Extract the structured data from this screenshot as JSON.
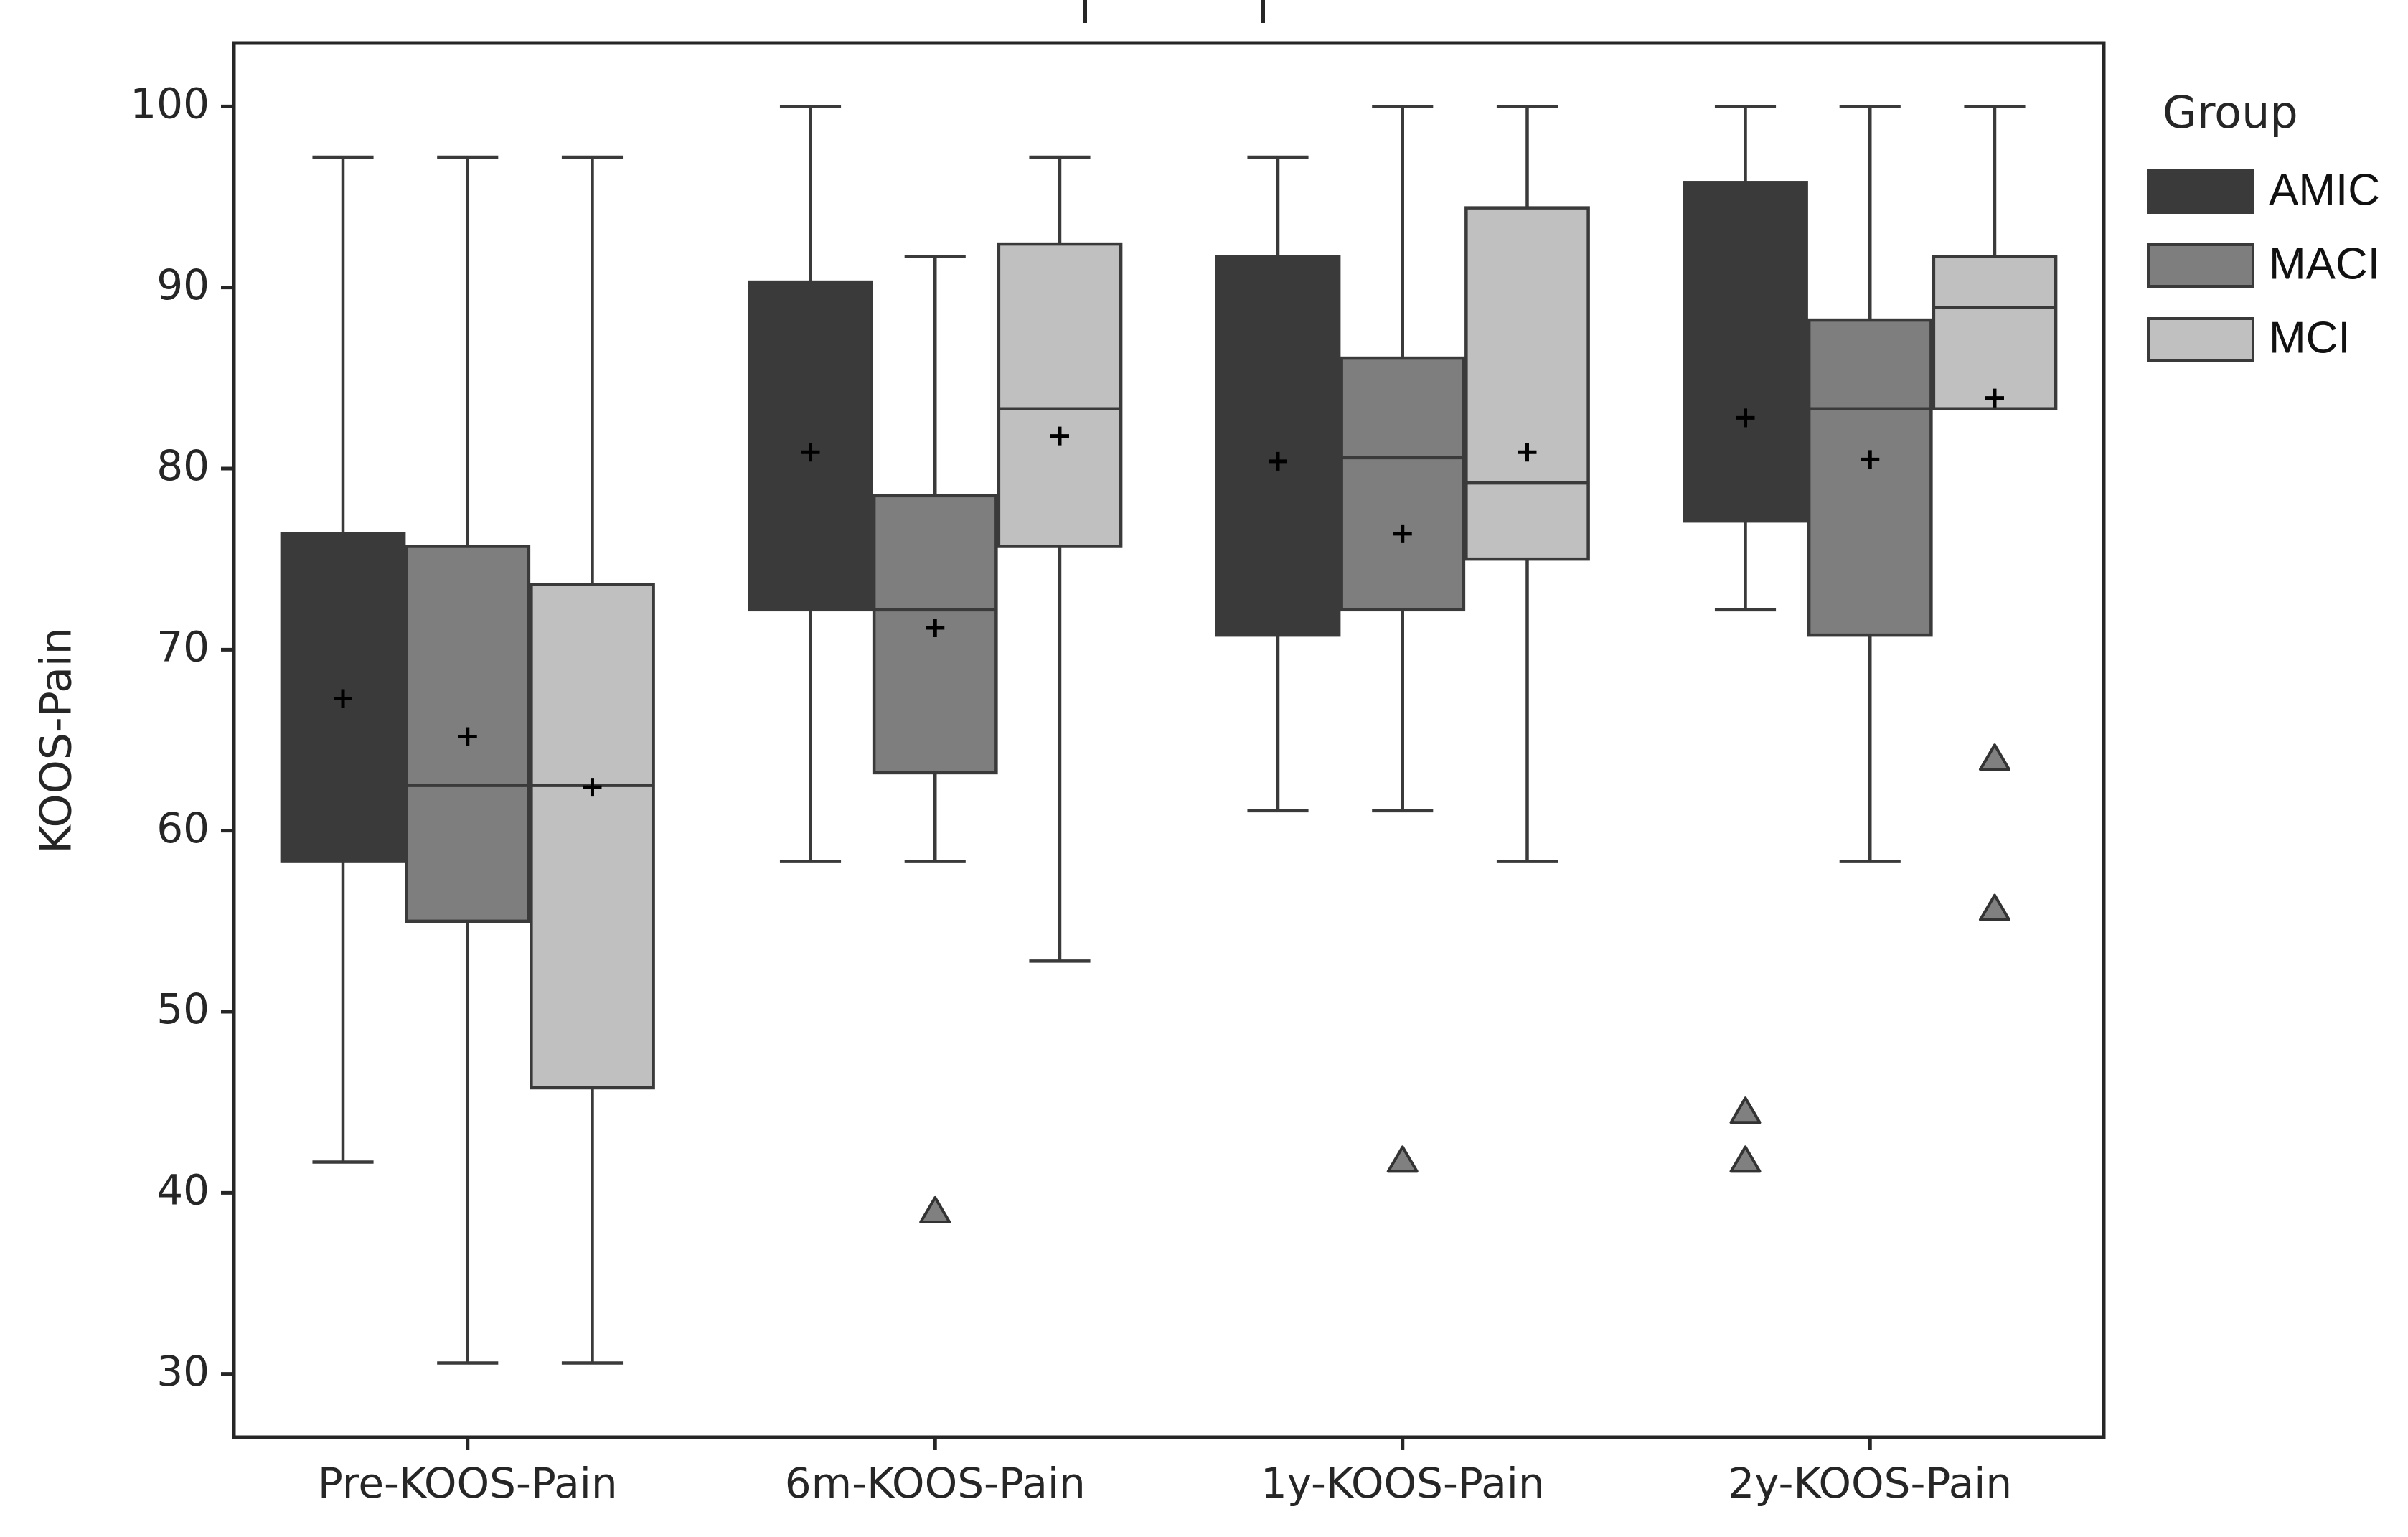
{
  "chart_data": {
    "type": "box",
    "title": "",
    "xlabel": "",
    "ylabel": "KOOS-Pain",
    "ylim": [
      26.5,
      103.5
    ],
    "yticks": [
      30,
      40,
      50,
      60,
      70,
      80,
      90,
      100
    ],
    "grid": false,
    "categories": [
      "Pre-KOOS-Pain",
      "6m-KOOS-Pain",
      "1y-KOOS-Pain",
      "2y-KOOS-Pain"
    ],
    "legend": {
      "title": "Group",
      "placement": "right",
      "entries": [
        "AMIC",
        "MACI",
        "MCI"
      ]
    },
    "series": [
      {
        "name": "AMIC",
        "color": "#3a3a3a",
        "boxes": [
          {
            "category": "Pre-KOOS-Pain",
            "whisker_low": 41.7,
            "q1": 58.3,
            "median": 66.7,
            "q3": 76.4,
            "whisker_high": 97.2,
            "mean": 67.3,
            "outliers": []
          },
          {
            "category": "6m-KOOS-Pain",
            "whisker_low": 58.3,
            "q1": 72.2,
            "median": 80.6,
            "q3": 90.3,
            "whisker_high": 100,
            "mean": 80.9,
            "outliers": []
          },
          {
            "category": "1y-KOOS-Pain",
            "whisker_low": 61.1,
            "q1": 70.8,
            "median": 80.6,
            "q3": 91.7,
            "whisker_high": 97.2,
            "mean": 80.4,
            "outliers": []
          },
          {
            "category": "2y-KOOS-Pain",
            "whisker_low": 72.2,
            "q1": 77.1,
            "median": 90.3,
            "q3": 95.8,
            "whisker_high": 100,
            "mean": 82.8,
            "outliers": [
              44.4,
              41.7
            ]
          }
        ]
      },
      {
        "name": "MACI",
        "color": "#7e7e7e",
        "boxes": [
          {
            "category": "Pre-KOOS-Pain",
            "whisker_low": 30.6,
            "q1": 55.0,
            "median": 62.5,
            "q3": 75.7,
            "whisker_high": 97.2,
            "mean": 65.2,
            "outliers": []
          },
          {
            "category": "6m-KOOS-Pain",
            "whisker_low": 58.3,
            "q1": 63.2,
            "median": 72.2,
            "q3": 78.5,
            "whisker_high": 91.7,
            "mean": 71.2,
            "outliers": [
              38.9
            ]
          },
          {
            "category": "1y-KOOS-Pain",
            "whisker_low": 61.1,
            "q1": 72.2,
            "median": 80.6,
            "q3": 86.1,
            "whisker_high": 100,
            "mean": 76.4,
            "outliers": [
              41.7
            ]
          },
          {
            "category": "2y-KOOS-Pain",
            "whisker_low": 58.3,
            "q1": 70.8,
            "median": 83.3,
            "q3": 88.2,
            "whisker_high": 100,
            "mean": 80.5,
            "outliers": []
          }
        ]
      },
      {
        "name": "MCI",
        "color": "#c0c0c0",
        "boxes": [
          {
            "category": "Pre-KOOS-Pain",
            "whisker_low": 30.6,
            "q1": 45.8,
            "median": 62.5,
            "q3": 73.6,
            "whisker_high": 97.2,
            "mean": 62.4,
            "outliers": []
          },
          {
            "category": "6m-KOOS-Pain",
            "whisker_low": 52.8,
            "q1": 75.7,
            "median": 83.3,
            "q3": 92.4,
            "whisker_high": 97.2,
            "mean": 81.8,
            "outliers": []
          },
          {
            "category": "1y-KOOS-Pain",
            "whisker_low": 58.3,
            "q1": 75.0,
            "median": 79.2,
            "q3": 94.4,
            "whisker_high": 100,
            "mean": 80.9,
            "outliers": []
          },
          {
            "category": "2y-KOOS-Pain",
            "whisker_low": 83.3,
            "q1": 83.3,
            "median": 88.9,
            "q3": 91.7,
            "whisker_high": 100,
            "mean": 83.9,
            "outliers": [
              63.9,
              55.6
            ]
          }
        ]
      }
    ]
  }
}
